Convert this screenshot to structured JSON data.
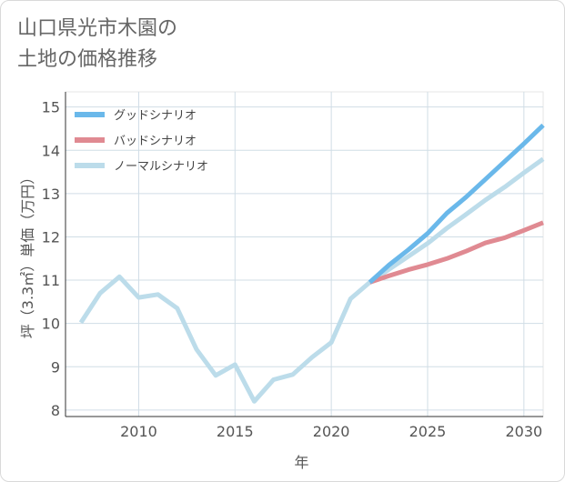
{
  "title_lines": [
    "山口県光市木園の",
    "土地の価格推移"
  ],
  "chart_data": {
    "type": "line",
    "xlabel": "年",
    "ylabel": "坪（3.3㎡）単価（万円）",
    "xlim": [
      2006.2,
      2031
    ],
    "ylim": [
      7.85,
      15.35
    ],
    "xticks": [
      2010,
      2015,
      2020,
      2025,
      2030
    ],
    "yticks": [
      8,
      9,
      10,
      11,
      12,
      13,
      14,
      15
    ],
    "grid": true,
    "legend_position": "top-left",
    "series": [
      {
        "name": "グッドシナリオ",
        "color": "#6ab8ea",
        "x": [
          2022,
          2023,
          2024,
          2025,
          2026,
          2027,
          2028,
          2029,
          2030,
          2031
        ],
        "values": [
          10.95,
          11.35,
          11.7,
          12.08,
          12.55,
          12.92,
          13.33,
          13.74,
          14.15,
          14.58
        ]
      },
      {
        "name": "バッドシナリオ",
        "color": "#e08a92",
        "x": [
          2022,
          2023,
          2024,
          2025,
          2026,
          2027,
          2028,
          2029,
          2030,
          2031
        ],
        "values": [
          10.95,
          11.1,
          11.24,
          11.36,
          11.5,
          11.67,
          11.86,
          11.98,
          12.15,
          12.33
        ]
      },
      {
        "name": "ノーマルシナリオ",
        "color": "#bcdcea",
        "x": [
          2007,
          2008,
          2009,
          2010,
          2011,
          2012,
          2013,
          2014,
          2015,
          2016,
          2017,
          2018,
          2019,
          2020,
          2021,
          2022,
          2023,
          2024,
          2025,
          2026,
          2027,
          2028,
          2029,
          2030,
          2031
        ],
        "values": [
          10.02,
          10.7,
          11.08,
          10.6,
          10.67,
          10.35,
          9.4,
          8.8,
          9.05,
          8.2,
          8.7,
          8.82,
          9.22,
          9.56,
          10.57,
          10.95,
          11.25,
          11.55,
          11.85,
          12.2,
          12.52,
          12.85,
          13.15,
          13.48,
          13.8
        ]
      }
    ]
  }
}
